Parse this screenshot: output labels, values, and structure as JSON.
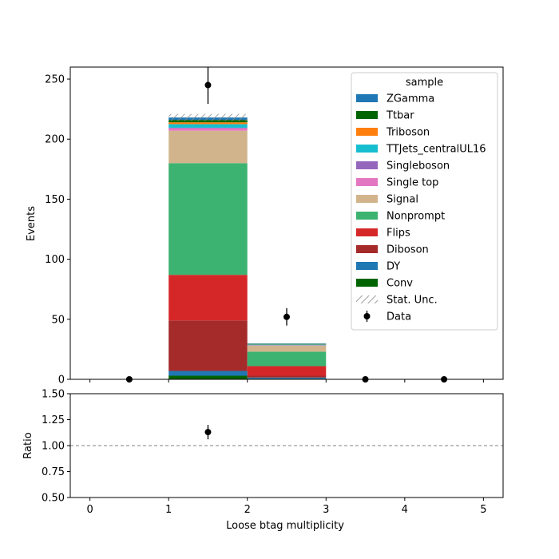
{
  "chart_data": {
    "type": "bar",
    "stacked": true,
    "x": {
      "label": "Loose btag multiplicity",
      "range": [
        -0.25,
        5.25
      ],
      "ticks": [
        0,
        1,
        2,
        3,
        4,
        5
      ],
      "bin_edges": [
        0,
        1,
        2,
        3,
        4,
        5
      ]
    },
    "top_panel": {
      "ylabel": "Events",
      "ylim": [
        0,
        260
      ],
      "yticks": [
        0,
        50,
        100,
        150,
        200,
        250
      ],
      "series": [
        {
          "name": "Conv",
          "color": "#006400",
          "values": [
            0,
            3,
            0.5,
            0,
            0
          ]
        },
        {
          "name": "DY",
          "color": "#1f77b4",
          "values": [
            0,
            4,
            1,
            0,
            0
          ]
        },
        {
          "name": "Diboson",
          "color": "#a52a2a",
          "values": [
            0,
            42,
            1.5,
            0,
            0
          ]
        },
        {
          "name": "Flips",
          "color": "#d62728",
          "values": [
            0,
            38,
            8,
            0,
            0
          ]
        },
        {
          "name": "Nonprompt",
          "color": "#3cb371",
          "values": [
            0,
            93,
            12,
            0,
            0
          ]
        },
        {
          "name": "Signal",
          "color": "#d2b48c",
          "values": [
            0,
            27,
            5,
            0,
            0
          ]
        },
        {
          "name": "Single top",
          "color": "#e377c2",
          "values": [
            0,
            2,
            0.3,
            0,
            0
          ]
        },
        {
          "name": "Singleboson",
          "color": "#9467bd",
          "values": [
            0,
            0.5,
            0.1,
            0,
            0
          ]
        },
        {
          "name": "TTJets_centralUL16",
          "color": "#17becf",
          "values": [
            0,
            3,
            0.5,
            0,
            0
          ]
        },
        {
          "name": "Triboson",
          "color": "#ff7f0e",
          "values": [
            0,
            1.5,
            0.2,
            0,
            0
          ]
        },
        {
          "name": "Ttbar",
          "color": "#006400",
          "values": [
            0,
            2,
            0.4,
            0,
            0
          ]
        },
        {
          "name": "ZGamma",
          "color": "#1f77b4",
          "values": [
            0,
            2,
            0.3,
            0,
            0
          ]
        }
      ],
      "stat_unc": {
        "name": "Stat. Unc.",
        "bins": [
          [
            1,
            215,
            221
          ]
        ]
      },
      "data": {
        "name": "Data",
        "x": [
          0.5,
          1.5,
          2.5,
          3.5,
          4.5
        ],
        "y": [
          0,
          245,
          52,
          0,
          0
        ],
        "err": [
          0,
          15.7,
          7.2,
          0,
          0
        ]
      },
      "legend": {
        "title": "sample",
        "placement": "top-right",
        "entries": [
          "ZGamma",
          "Ttbar",
          "Triboson",
          "TTJets_centralUL16",
          "Singleboson",
          "Single top",
          "Signal",
          "Nonprompt",
          "Flips",
          "Diboson",
          "DY",
          "Conv",
          "Stat. Unc.",
          "Data"
        ]
      }
    },
    "ratio_panel": {
      "ylabel": "Ratio",
      "ylim": [
        0.5,
        1.5
      ],
      "yticks": [
        "0.50",
        "0.75",
        "1.00",
        "1.25",
        "1.50"
      ],
      "reference_line": 1.0,
      "points": [
        {
          "x": 1.5,
          "y": 1.13,
          "err": 0.07
        }
      ]
    }
  }
}
